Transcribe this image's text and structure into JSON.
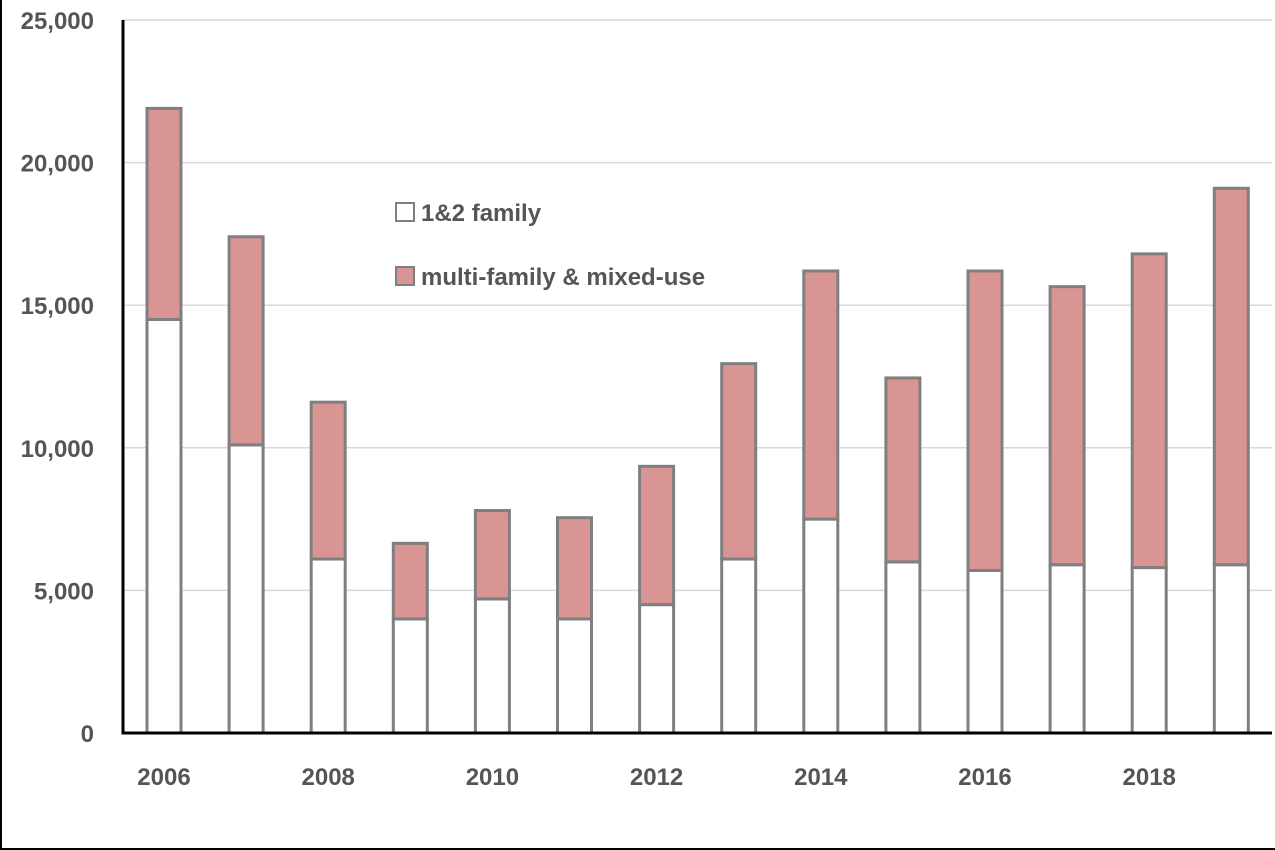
{
  "chart_data": {
    "type": "bar",
    "stacked": true,
    "title": "",
    "xlabel": "",
    "ylabel": "",
    "ylim": [
      0,
      25000
    ],
    "y_ticks": [
      "0",
      "5,000",
      "10,000",
      "15,000",
      "20,000",
      "25,000"
    ],
    "categories": [
      "2006",
      "2007",
      "2008",
      "2009",
      "2010",
      "2011",
      "2012",
      "2013",
      "2014",
      "2015",
      "2016",
      "2017",
      "2018",
      "2019"
    ],
    "x_tick_labels": [
      "2006",
      "",
      "2008",
      "",
      "2010",
      "",
      "2012",
      "",
      "2014",
      "",
      "2016",
      "",
      "2018",
      ""
    ],
    "grid": true,
    "legend_position": "upper-left-center",
    "series": [
      {
        "name": "1&2 family",
        "color": "#ffffff",
        "values": [
          14500,
          10100,
          6100,
          4000,
          4700,
          4000,
          4500,
          6100,
          7500,
          6000,
          5700,
          5900,
          5800,
          5900
        ]
      },
      {
        "name": "multi-family & mixed-use",
        "color": "#d99594",
        "values": [
          7400,
          7300,
          5500,
          2650,
          3100,
          3550,
          4850,
          6850,
          8700,
          6450,
          10500,
          9750,
          11000,
          13200
        ]
      }
    ],
    "bar_edge_color": "#7f7f7f",
    "grid_color": "#d9d9d9",
    "axis_color": "#000000"
  }
}
